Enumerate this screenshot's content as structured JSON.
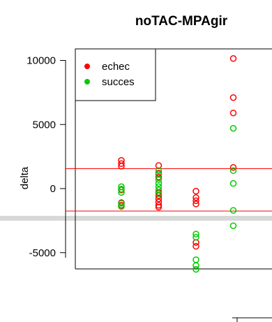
{
  "chart_data": {
    "type": "scatter",
    "title": "noTAC-MPAgir",
    "xlabel": "",
    "ylabel": "delta",
    "yticks": [
      10000,
      5000,
      0,
      -5000
    ],
    "ylim": [
      -6500,
      11000
    ],
    "xlim": [
      0.5,
      5.5
    ],
    "hlines": [
      1550,
      -1750
    ],
    "legend": {
      "position": "top-left",
      "entries": [
        {
          "name": "echec",
          "color": "#ff0000"
        },
        {
          "name": "succes",
          "color": "#00cc00"
        }
      ]
    },
    "series": [
      {
        "name": "echec",
        "color": "#ff0000",
        "points": [
          {
            "x": 1,
            "y": 2200
          },
          {
            "x": 1,
            "y": 1950
          },
          {
            "x": 1,
            "y": 1750
          },
          {
            "x": 1,
            "y": -1300
          },
          {
            "x": 1,
            "y": -1100
          },
          {
            "x": 1,
            "y": -100
          },
          {
            "x": 2,
            "y": 1800
          },
          {
            "x": 2,
            "y": 1200
          },
          {
            "x": 2,
            "y": 900
          },
          {
            "x": 2,
            "y": -300
          },
          {
            "x": 2,
            "y": -550
          },
          {
            "x": 2,
            "y": -800
          },
          {
            "x": 2,
            "y": -1050
          },
          {
            "x": 2,
            "y": -1300
          },
          {
            "x": 2,
            "y": -1450
          },
          {
            "x": 3,
            "y": -200
          },
          {
            "x": 3,
            "y": -700
          },
          {
            "x": 3,
            "y": -950
          },
          {
            "x": 3,
            "y": -1200
          },
          {
            "x": 3,
            "y": -4200
          },
          {
            "x": 3,
            "y": -4500
          },
          {
            "x": 4,
            "y": 10150
          },
          {
            "x": 4,
            "y": 7100
          },
          {
            "x": 4,
            "y": 5900
          },
          {
            "x": 4,
            "y": 1650
          }
        ]
      },
      {
        "name": "succes",
        "color": "#00cc00",
        "points": [
          {
            "x": 1,
            "y": 150
          },
          {
            "x": 1,
            "y": -50
          },
          {
            "x": 1,
            "y": -300
          },
          {
            "x": 1,
            "y": -1150
          },
          {
            "x": 1,
            "y": -1400
          },
          {
            "x": 2,
            "y": 1400
          },
          {
            "x": 2,
            "y": 1100
          },
          {
            "x": 2,
            "y": 700
          },
          {
            "x": 2,
            "y": 400
          },
          {
            "x": 2,
            "y": 150
          },
          {
            "x": 2,
            "y": -100
          },
          {
            "x": 2,
            "y": -400
          },
          {
            "x": 3,
            "y": -3550
          },
          {
            "x": 3,
            "y": -3800
          },
          {
            "x": 3,
            "y": -5550
          },
          {
            "x": 3,
            "y": -6000
          },
          {
            "x": 3,
            "y": -6300
          },
          {
            "x": 4,
            "y": 4700
          },
          {
            "x": 4,
            "y": 1400
          },
          {
            "x": 4,
            "y": 400
          },
          {
            "x": 4,
            "y": -1700
          },
          {
            "x": 4,
            "y": -2900
          }
        ]
      }
    ]
  }
}
